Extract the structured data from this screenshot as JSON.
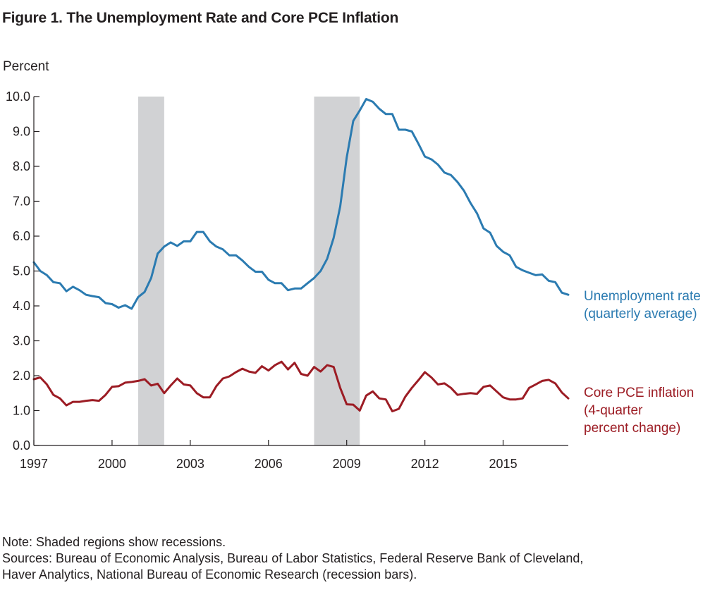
{
  "title": "Figure 1. The Unemployment Rate and Core PCE Inflation",
  "notes": {
    "note": "Note: Shaded regions show recessions.",
    "sources_line1": "Sources: Bureau of Economic Analysis, Bureau of Labor Statistics, Federal Reserve Bank of Cleveland,",
    "sources_line2": "Haver Analytics, National Bureau of Economic Research (recession bars)."
  },
  "colors": {
    "unemployment": "#2b7bb1",
    "core_pce": "#9c1c24",
    "recession": "#d1d2d4",
    "axis": "#231f20"
  },
  "chart_data": {
    "type": "line",
    "title": "Figure 1. The Unemployment Rate and Core PCE Inflation",
    "xlabel": "",
    "ylabel": "Percent",
    "xlim": [
      1997.0,
      2017.5
    ],
    "ylim": [
      0,
      10
    ],
    "x_ticks": [
      "1997",
      "2000",
      "2003",
      "2006",
      "2009",
      "2012",
      "2015"
    ],
    "y_ticks": [
      "0.0",
      "1.0",
      "2.0",
      "3.0",
      "4.0",
      "5.0",
      "6.0",
      "7.0",
      "8.0",
      "9.0",
      "10.0"
    ],
    "recessions": [
      [
        2001.0,
        2002.0
      ],
      [
        2007.75,
        2009.5
      ]
    ],
    "series": [
      {
        "name": "Unemployment rate (quarterly average)",
        "label_lines": [
          "Unemployment rate",
          "(quarterly average)"
        ],
        "start": 1997.0,
        "step": 0.25,
        "values": [
          5.25,
          5.0,
          4.88,
          4.68,
          4.65,
          4.42,
          4.55,
          4.45,
          4.32,
          4.28,
          4.25,
          4.08,
          4.05,
          3.95,
          4.02,
          3.92,
          4.25,
          4.4,
          4.8,
          5.5,
          5.7,
          5.82,
          5.72,
          5.85,
          5.85,
          6.12,
          6.12,
          5.85,
          5.7,
          5.62,
          5.45,
          5.45,
          5.3,
          5.12,
          4.98,
          4.98,
          4.75,
          4.65,
          4.65,
          4.45,
          4.5,
          4.5,
          4.65,
          4.8,
          5.0,
          5.35,
          5.95,
          6.85,
          8.25,
          9.3,
          9.6,
          9.93,
          9.85,
          9.65,
          9.5,
          9.5,
          9.05,
          9.05,
          9.0,
          8.65,
          8.28,
          8.2,
          8.05,
          7.82,
          7.75,
          7.55,
          7.3,
          6.95,
          6.65,
          6.22,
          6.1,
          5.72,
          5.55,
          5.45,
          5.12,
          5.02,
          4.95,
          4.88,
          4.9,
          4.72,
          4.68,
          4.38,
          4.32
        ]
      },
      {
        "name": "Core PCE inflation (4-quarter percent change)",
        "label_lines": [
          "Core PCE inflation",
          "(4-quarter",
          "percent change)"
        ],
        "start": 1997.0,
        "step": 0.25,
        "values": [
          1.9,
          1.95,
          1.75,
          1.45,
          1.35,
          1.15,
          1.25,
          1.25,
          1.28,
          1.3,
          1.28,
          1.45,
          1.68,
          1.7,
          1.8,
          1.82,
          1.85,
          1.9,
          1.72,
          1.77,
          1.5,
          1.72,
          1.92,
          1.75,
          1.72,
          1.5,
          1.38,
          1.38,
          1.7,
          1.92,
          1.98,
          2.1,
          2.2,
          2.12,
          2.08,
          2.27,
          2.15,
          2.3,
          2.4,
          2.18,
          2.37,
          2.05,
          2.0,
          2.25,
          2.12,
          2.3,
          2.25,
          1.65,
          1.18,
          1.17,
          1.0,
          1.43,
          1.55,
          1.35,
          1.32,
          0.98,
          1.05,
          1.4,
          1.65,
          1.87,
          2.1,
          1.95,
          1.75,
          1.78,
          1.65,
          1.45,
          1.48,
          1.5,
          1.48,
          1.68,
          1.72,
          1.55,
          1.38,
          1.32,
          1.32,
          1.35,
          1.65,
          1.75,
          1.85,
          1.88,
          1.78,
          1.52,
          1.35
        ]
      }
    ]
  }
}
